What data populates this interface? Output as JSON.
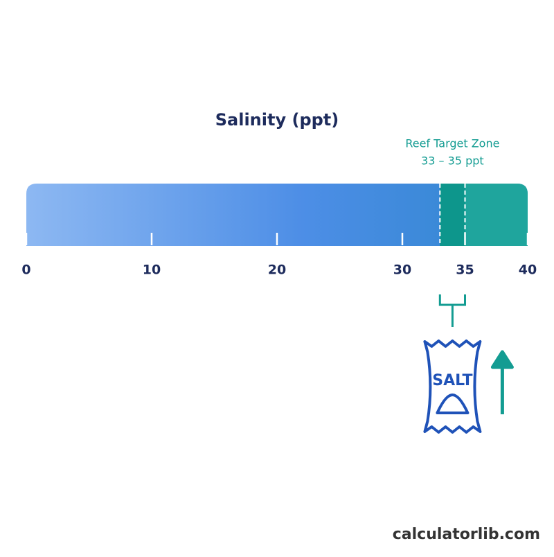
{
  "title": "Salinity (ppt)",
  "scale": {
    "ticks": [
      0,
      10,
      20,
      30,
      35,
      40
    ]
  },
  "zone": {
    "label": "Reef Target Zone",
    "range_label": "33 – 35 ppt",
    "start": 33,
    "end": 35
  },
  "icon": {
    "label": "SALT"
  },
  "footer": "calculatorlib.com"
}
